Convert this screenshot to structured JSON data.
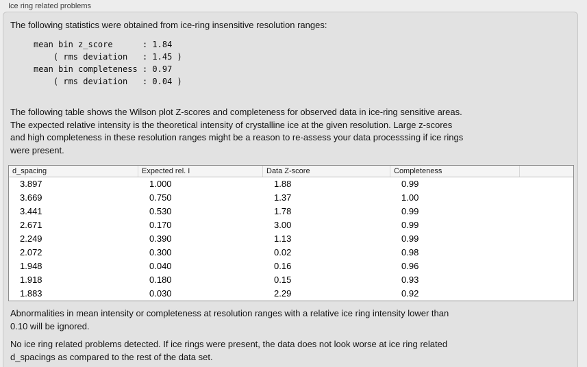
{
  "window": {
    "group_title": "Ice ring related problems"
  },
  "panel": {
    "intro": "The following statistics were obtained from ice-ring insensitive resolution ranges:",
    "stats_block": "mean bin z_score      : 1.84\n    ( rms deviation   : 1.45 )\nmean bin completeness : 0.97\n    ( rms deviation   : 0.04 )",
    "table_description": "The following table shows the Wilson plot Z-scores and completeness for observed data in ice-ring sensitive areas.\nThe expected relative intensity is the theoretical intensity of crystalline ice at the given resolution. Large z-scores\nand high completeness in these resolution ranges might be a reason to re-assess your data processsing if ice rings\nwere present.",
    "table": {
      "columns": [
        "d_spacing",
        "Expected rel. I",
        "Data Z-score",
        "Completeness",
        ""
      ],
      "rows": [
        [
          "3.897",
          "1.000",
          "1.88",
          "0.99"
        ],
        [
          "3.669",
          "0.750",
          "1.37",
          "1.00"
        ],
        [
          "3.441",
          "0.530",
          "1.78",
          "0.99"
        ],
        [
          "2.671",
          "0.170",
          "3.00",
          "0.99"
        ],
        [
          "2.249",
          "0.390",
          "1.13",
          "0.99"
        ],
        [
          "2.072",
          "0.300",
          "0.02",
          "0.98"
        ],
        [
          "1.948",
          "0.040",
          "0.16",
          "0.96"
        ],
        [
          "1.918",
          "0.180",
          "0.15",
          "0.93"
        ],
        [
          "1.883",
          "0.030",
          "2.29",
          "0.92"
        ]
      ]
    },
    "note_ignore": "Abnormalities in mean intensity or completeness at resolution ranges with a relative ice ring intensity lower than\n0.10 will be ignored.",
    "conclusion": "No ice ring related problems detected. If ice rings were present, the data does not look worse at ice ring related\nd_spacings as compared to the rest of the data set."
  },
  "colors": {
    "panel_background": "#e2e2e2",
    "page_background": "#ededed",
    "table_border": "#8c8c8c",
    "table_header_background": "#f5f5f5"
  }
}
